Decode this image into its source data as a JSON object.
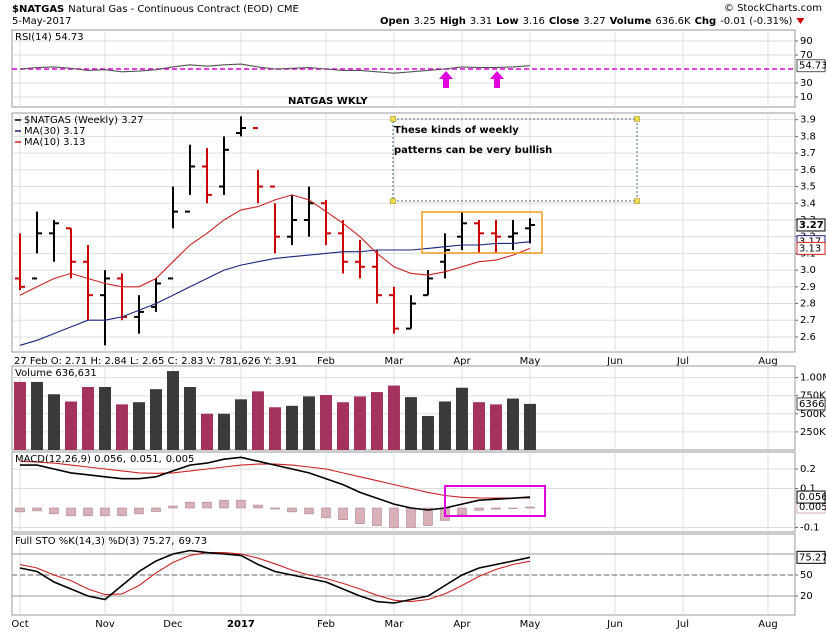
{
  "header": {
    "symbol": "$NATGAS",
    "name": "Natural Gas - Continuous Contract (EOD)",
    "exchange": "CME",
    "date": "5-May-2017",
    "quote": [
      {
        "label": "Open",
        "value": 3.25
      },
      {
        "label": "High",
        "value": 3.31
      },
      {
        "label": "Low",
        "value": 3.16
      },
      {
        "label": "Close",
        "value": 3.27
      },
      {
        "label": "Volume",
        "value": "636.6K"
      },
      {
        "label": "Chg",
        "value": "-0.01 (-0.31%)"
      }
    ],
    "credit": "© StockCharts.com"
  },
  "xaxis": {
    "xlim": [
      -0.47,
      45.59
    ],
    "xticks": [
      {
        "value": 0,
        "label": "Oct"
      },
      {
        "value": 5,
        "label": "Nov"
      },
      {
        "value": 9,
        "label": "Dec"
      },
      {
        "value": 13,
        "label": "2017"
      },
      {
        "value": 18,
        "label": "Feb"
      },
      {
        "value": 22,
        "label": "Mar"
      },
      {
        "value": 26,
        "label": "Apr"
      },
      {
        "value": 30,
        "label": "May"
      },
      {
        "value": 35,
        "label": "Jun"
      },
      {
        "value": 39,
        "label": "Jul"
      },
      {
        "value": 44,
        "label": "Aug"
      }
    ]
  },
  "chart_data": [
    {
      "type": "line",
      "legend": [
        {
          "text": "RSI(14) 54.73",
          "color": "#000000"
        }
      ],
      "legend_layout": "row",
      "annotation": "NATGAS WKLY",
      "ylim": [
        -4.3,
        105.7
      ],
      "yticks": [
        10,
        30,
        70,
        90
      ],
      "levels": [
        {
          "value": 50,
          "color": "#e000e0",
          "dash": true
        }
      ],
      "series": [
        {
          "color": "#555555",
          "tag": true,
          "values": [
            50,
            52,
            53,
            51,
            48,
            49,
            46,
            47,
            49,
            53,
            56,
            54,
            56,
            57,
            53,
            50,
            51,
            52,
            50,
            48,
            48,
            46,
            44,
            46,
            48,
            50,
            53,
            52,
            52,
            53,
            54.73
          ]
        }
      ]
    },
    {
      "type": "ohlc",
      "legend": [
        {
          "text": "$NATGAS (Weekly) 3.27",
          "color": "#000000"
        },
        {
          "text": "MA(30) 3.17",
          "color": "#1a237e"
        },
        {
          "text": "MA(10) 3.13",
          "color": "#cc2222"
        }
      ],
      "legend_layout": "column",
      "annotation": [
        "These kinds of weekly",
        "patterns can be very bullish"
      ],
      "info": "27 Feb O: 2.71 H: 2.84 L: 2.65 C: 2.83 V: 781,626 Y: 3.91",
      "ylim": [
        2.51,
        3.94
      ],
      "yticks": [
        2.6,
        2.7,
        2.8,
        2.9,
        {
          "value": 3,
          "label": "3.0"
        },
        3.1,
        3.2,
        3.3,
        3.4,
        3.5,
        3.6,
        3.7,
        3.8,
        3.9
      ],
      "up_color": "#000000",
      "down_color": "#cc0000",
      "tag": true,
      "ohlc": {
        "open": [
          2.95,
          2.95,
          3.22,
          3.25,
          3.05,
          2.85,
          2.95,
          2.72,
          2.78,
          2.95,
          3.35,
          3.62,
          3.5,
          3.82,
          3.85,
          3.5,
          3.2,
          3.3,
          3.4,
          3.22,
          3.05,
          3.02,
          2.85,
          2.65,
          2.85,
          3.05,
          3.2,
          3.28,
          3.22,
          3.2,
          3.25
        ],
        "high": [
          3.22,
          3.35,
          3.3,
          3.25,
          3.15,
          3.0,
          2.98,
          2.85,
          2.95,
          3.5,
          3.75,
          3.73,
          3.8,
          3.92,
          3.6,
          3.4,
          3.45,
          3.5,
          3.42,
          3.3,
          3.18,
          3.12,
          2.9,
          2.85,
          3.0,
          3.22,
          3.35,
          3.3,
          3.3,
          3.3,
          3.31
        ],
        "low": [
          2.88,
          3.1,
          3.05,
          2.95,
          2.7,
          2.55,
          2.7,
          2.62,
          2.75,
          3.25,
          3.45,
          3.4,
          3.45,
          3.8,
          3.4,
          3.1,
          3.15,
          3.2,
          3.15,
          2.98,
          2.95,
          2.8,
          2.62,
          2.65,
          2.85,
          2.95,
          3.12,
          3.1,
          3.1,
          3.12,
          3.16
        ],
        "close": [
          2.9,
          3.22,
          3.28,
          3.05,
          2.85,
          2.95,
          2.72,
          2.75,
          2.92,
          3.35,
          3.62,
          3.45,
          3.72,
          3.85,
          3.5,
          3.2,
          3.3,
          3.4,
          3.22,
          3.05,
          3.02,
          2.85,
          2.65,
          2.8,
          2.95,
          3.12,
          3.28,
          3.22,
          3.2,
          3.22,
          3.27
        ]
      },
      "series": [
        {
          "color": "#1a237e",
          "tag": true,
          "values": [
            2.55,
            2.58,
            2.62,
            2.66,
            2.7,
            2.7,
            2.72,
            2.76,
            2.8,
            2.85,
            2.9,
            2.95,
            3.0,
            3.03,
            3.05,
            3.07,
            3.08,
            3.09,
            3.1,
            3.11,
            3.11,
            3.12,
            3.12,
            3.12,
            3.13,
            3.14,
            3.15,
            3.15,
            3.16,
            3.16,
            3.17
          ]
        },
        {
          "color": "#cc2222",
          "tag": true,
          "values": [
            2.85,
            2.9,
            2.95,
            2.98,
            2.95,
            2.92,
            2.9,
            2.9,
            2.95,
            3.05,
            3.15,
            3.22,
            3.3,
            3.36,
            3.38,
            3.42,
            3.45,
            3.42,
            3.35,
            3.28,
            3.2,
            3.1,
            3.02,
            2.98,
            2.97,
            2.99,
            3.02,
            3.05,
            3.06,
            3.09,
            3.13
          ]
        }
      ]
    },
    {
      "type": "bar",
      "legend": [
        {
          "text": "Volume 636,631",
          "color": "#000000"
        }
      ],
      "legend_layout": "row",
      "ylim": [
        0,
        1160000
      ],
      "yticks": [
        {
          "value": 250000,
          "label": "250K"
        },
        {
          "value": 500000,
          "label": "500K"
        },
        {
          "value": 750000,
          "label": "750K"
        },
        {
          "value": 1000000,
          "label": "1.00M"
        }
      ],
      "up_color": "#3a3a3a",
      "down_color": "#a3325f",
      "series": [
        {
          "tag": true,
          "values": [
            940000,
            940000,
            770000,
            670000,
            870000,
            870000,
            630000,
            660000,
            840000,
            1090000,
            870000,
            500000,
            500000,
            700000,
            810000,
            590000,
            610000,
            740000,
            760000,
            660000,
            740000,
            800000,
            890000,
            730000,
            470000,
            670000,
            860000,
            660000,
            630000,
            710000,
            636631
          ]
        }
      ]
    },
    {
      "type": "line",
      "legend": [
        {
          "text": "MACD(12,26,9) 0.056,",
          "color": "#000000"
        },
        {
          "text": "0.051,",
          "color": "#cc2222"
        },
        {
          "text": "0.005",
          "color": "#d07090"
        }
      ],
      "legend_layout": "row",
      "ylim": [
        -0.123,
        0.287
      ],
      "yticks": [
        -0.1,
        0.1,
        0.2
      ],
      "series": [
        {
          "type": "bar",
          "color": "#d7b0b8",
          "tag": true,
          "values": [
            -0.02,
            -0.015,
            -0.03,
            -0.04,
            -0.04,
            -0.04,
            -0.04,
            -0.03,
            -0.018,
            0.01,
            0.03,
            0.03,
            0.04,
            0.04,
            0.015,
            -0.005,
            -0.02,
            -0.03,
            -0.05,
            -0.06,
            -0.08,
            -0.09,
            -0.1,
            -0.1,
            -0.09,
            -0.064,
            -0.035,
            -0.012,
            -0.006,
            -0.001,
            0.005
          ]
        },
        {
          "color": "#cc2222",
          "values": [
            0.24,
            0.235,
            0.23,
            0.22,
            0.21,
            0.2,
            0.19,
            0.18,
            0.178,
            0.18,
            0.19,
            0.2,
            0.21,
            0.22,
            0.225,
            0.225,
            0.22,
            0.21,
            0.2,
            0.18,
            0.16,
            0.14,
            0.12,
            0.1,
            0.08,
            0.064,
            0.055,
            0.052,
            0.051,
            0.051,
            0.051
          ]
        },
        {
          "color": "#000000",
          "width": 1.6,
          "tag": true,
          "values": [
            0.22,
            0.22,
            0.2,
            0.18,
            0.17,
            0.16,
            0.15,
            0.15,
            0.16,
            0.19,
            0.22,
            0.23,
            0.25,
            0.26,
            0.24,
            0.22,
            0.2,
            0.18,
            0.15,
            0.12,
            0.08,
            0.05,
            0.02,
            0,
            -0.01,
            0,
            0.02,
            0.04,
            0.045,
            0.05,
            0.056
          ]
        }
      ]
    },
    {
      "type": "line",
      "legend": [
        {
          "text": "Full STO %K(14,3) %D(3) 75.27,",
          "color": "#000000"
        },
        {
          "text": "69.73",
          "color": "#cc2222"
        }
      ],
      "legend_layout": "row",
      "ylim": [
        -7.1,
        108.6
      ],
      "yticks": [
        20,
        50
      ],
      "levels": [
        {
          "value": 80,
          "color": "#999999",
          "dash": false
        },
        {
          "value": 50,
          "color": "#999999",
          "dash": true
        },
        {
          "value": 20,
          "color": "#999999",
          "dash": false
        }
      ],
      "series": [
        {
          "color": "#cc2222",
          "values": [
            65,
            60,
            50,
            42,
            30,
            22,
            23,
            35,
            53,
            68,
            78,
            82,
            82,
            80,
            74,
            66,
            57,
            50,
            45,
            38,
            30,
            21,
            14,
            12,
            15,
            23,
            35,
            48,
            58,
            65,
            69.73
          ]
        },
        {
          "color": "#000000",
          "width": 1.6,
          "tag": true,
          "values": [
            60,
            55,
            40,
            30,
            20,
            15,
            35,
            55,
            70,
            80,
            85,
            82,
            80,
            78,
            65,
            55,
            50,
            45,
            40,
            30,
            20,
            12,
            10,
            15,
            20,
            35,
            50,
            60,
            65,
            70,
            75.27
          ]
        }
      ]
    }
  ]
}
